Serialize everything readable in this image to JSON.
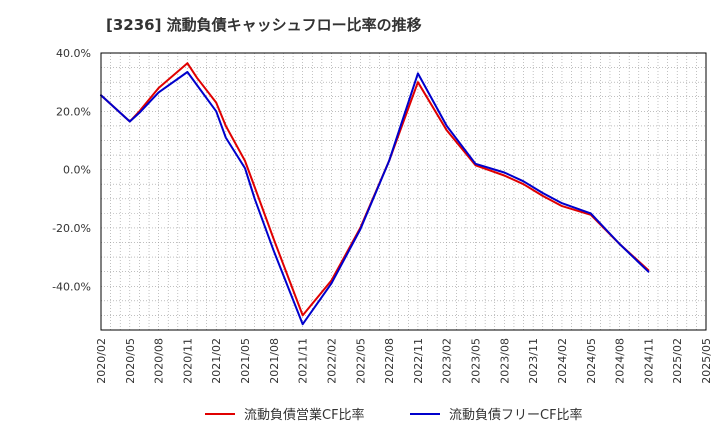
{
  "chart_data": {
    "type": "line",
    "title": "[3236]  流動負債キャッシュフロー比率の推移",
    "xlabel": "",
    "ylabel": "",
    "ylim": [
      -55,
      40
    ],
    "yticks": [
      40,
      20,
      0,
      -20,
      -40
    ],
    "ytick_labels": [
      "40.0%",
      "20.0%",
      "0.0%",
      "-20.0%",
      "-40.0%"
    ],
    "xlim": [
      "2020-02",
      "2025-05"
    ],
    "xtick_labels": [
      "2020/02",
      "2020/05",
      "2020/08",
      "2020/11",
      "2021/02",
      "2021/05",
      "2021/08",
      "2021/11",
      "2022/02",
      "2022/05",
      "2022/08",
      "2022/11",
      "2023/02",
      "2023/05",
      "2023/08",
      "2023/11",
      "2024/02",
      "2024/05",
      "2024/08",
      "2024/11",
      "2025/02",
      "2025/05"
    ],
    "grid": true,
    "legend_position": "bottom",
    "colors": {
      "operating": "#e00000",
      "free": "#0000cc",
      "grid": "#999999",
      "frame": "#000000"
    },
    "series": [
      {
        "name": "流動負債営業CF比率",
        "color": "#e00000",
        "points": [
          [
            "2020-02",
            25.5
          ],
          [
            "2020-05",
            16.5
          ],
          [
            "2020-06",
            20.0
          ],
          [
            "2020-08",
            28.0
          ],
          [
            "2020-11",
            36.5
          ],
          [
            "2020-12",
            31.5
          ],
          [
            "2021-02",
            23.0
          ],
          [
            "2021-03",
            15.0
          ],
          [
            "2021-05",
            3.0
          ],
          [
            "2021-06",
            -6.0
          ],
          [
            "2021-08",
            -24.0
          ],
          [
            "2021-11",
            -50.0
          ],
          [
            "2022-02",
            -38.0
          ],
          [
            "2022-05",
            -20.0
          ],
          [
            "2022-08",
            3.0
          ],
          [
            "2022-11",
            30.0
          ],
          [
            "2023-02",
            13.5
          ],
          [
            "2023-05",
            1.5
          ],
          [
            "2023-08",
            -2.0
          ],
          [
            "2023-10",
            -5.0
          ],
          [
            "2023-12",
            -9.0
          ],
          [
            "2024-02",
            -12.5
          ],
          [
            "2024-05",
            -15.5
          ],
          [
            "2024-08",
            -25.5
          ],
          [
            "2024-11",
            -34.5
          ]
        ]
      },
      {
        "name": "流動負債フリーCF比率",
        "color": "#0000cc",
        "points": [
          [
            "2020-02",
            25.5
          ],
          [
            "2020-05",
            16.5
          ],
          [
            "2020-06",
            19.5
          ],
          [
            "2020-08",
            26.5
          ],
          [
            "2020-11",
            33.5
          ],
          [
            "2020-12",
            29.0
          ],
          [
            "2021-02",
            20.0
          ],
          [
            "2021-03",
            11.0
          ],
          [
            "2021-05",
            0.5
          ],
          [
            "2021-06",
            -10.0
          ],
          [
            "2021-08",
            -28.0
          ],
          [
            "2021-11",
            -53.0
          ],
          [
            "2022-02",
            -39.0
          ],
          [
            "2022-05",
            -20.5
          ],
          [
            "2022-08",
            3.0
          ],
          [
            "2022-11",
            33.0
          ],
          [
            "2023-02",
            15.0
          ],
          [
            "2023-05",
            2.0
          ],
          [
            "2023-08",
            -1.0
          ],
          [
            "2023-10",
            -4.0
          ],
          [
            "2023-12",
            -8.0
          ],
          [
            "2024-02",
            -11.5
          ],
          [
            "2024-05",
            -15.0
          ],
          [
            "2024-08",
            -25.5
          ],
          [
            "2024-11",
            -35.0
          ]
        ]
      }
    ]
  }
}
